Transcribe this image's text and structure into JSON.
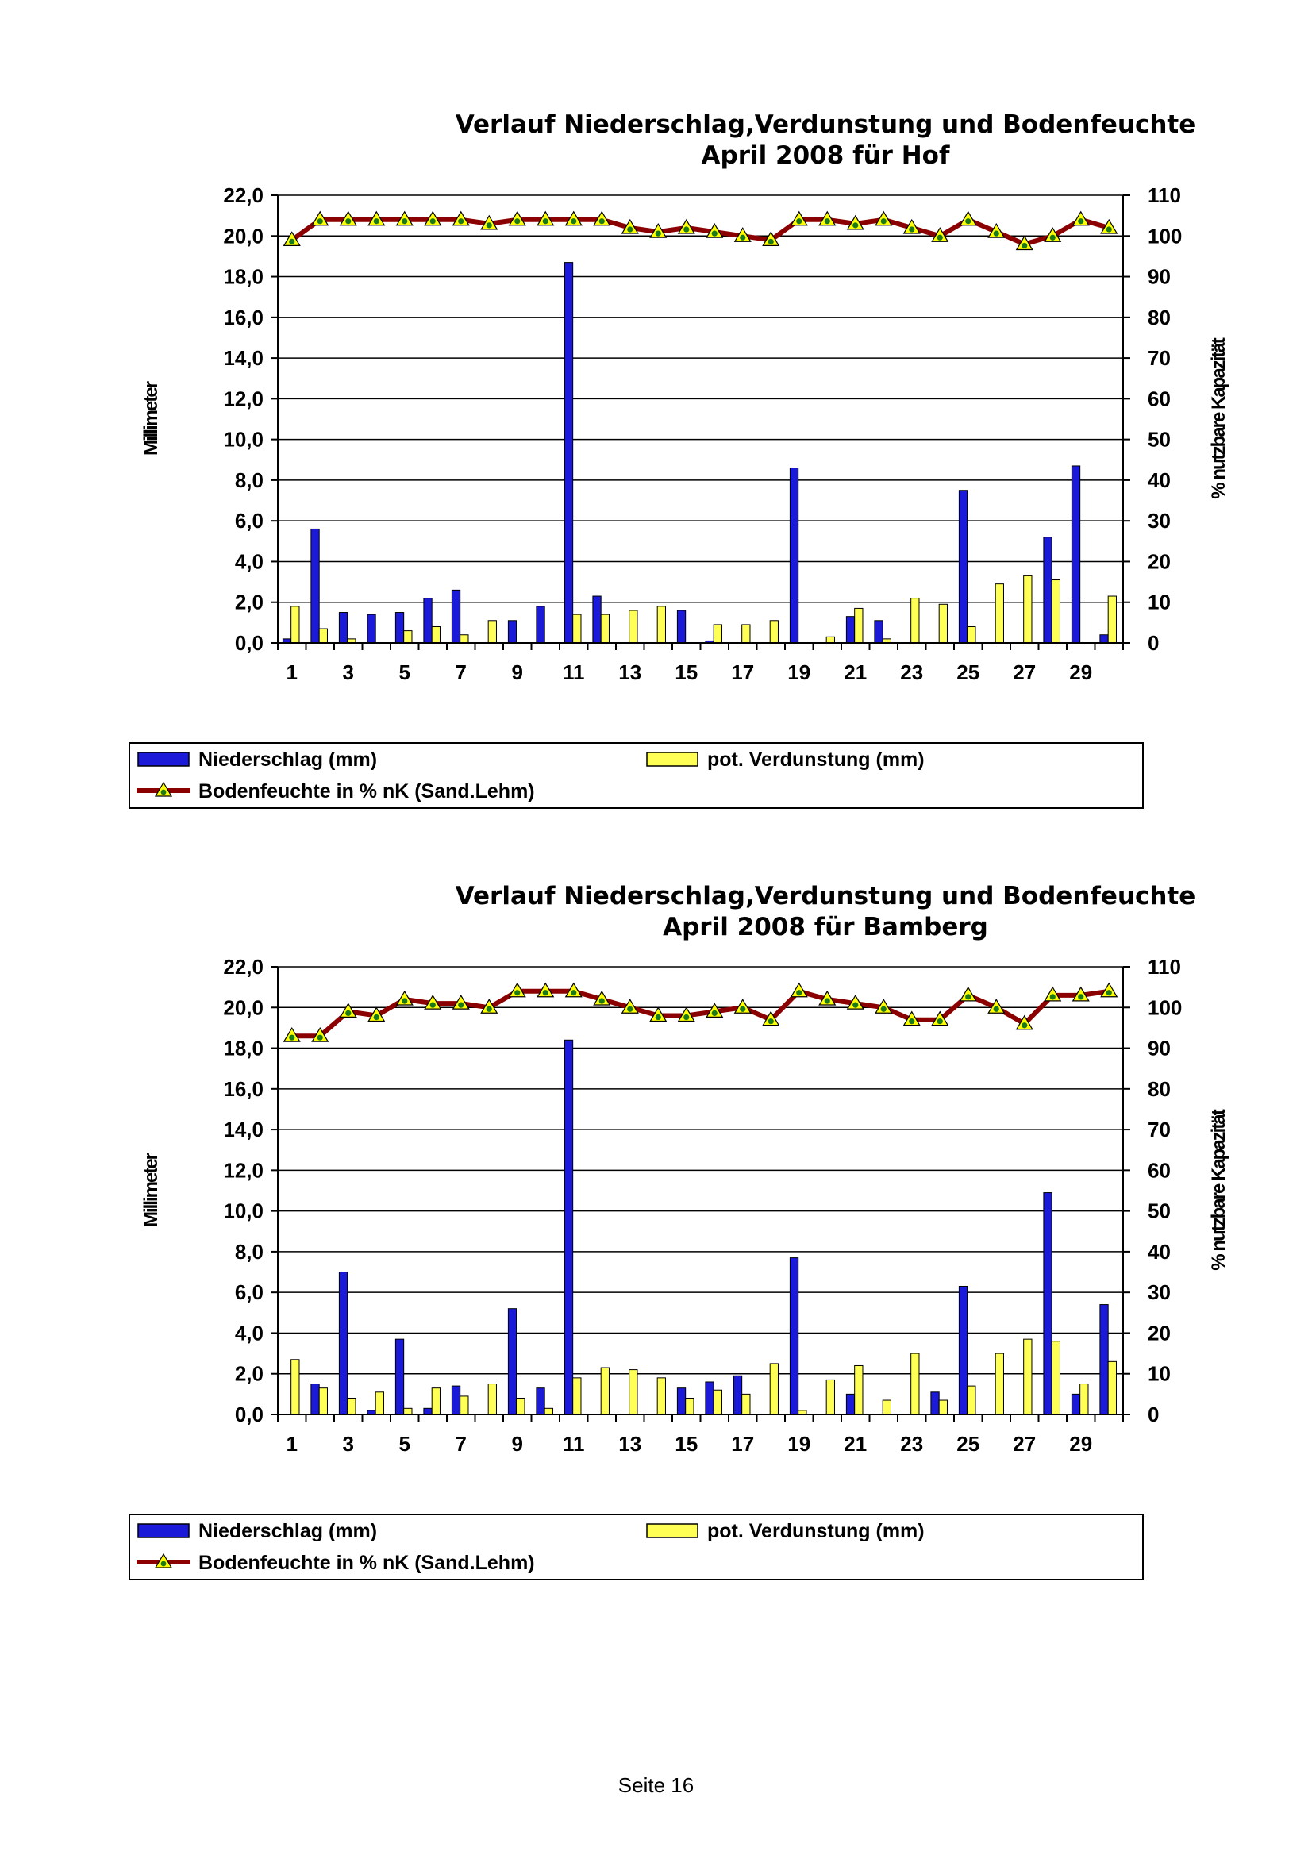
{
  "chart_data": [
    {
      "type": "bar",
      "title": "Verlauf Niederschlag,Verdunstung und Bodenfeuchte",
      "subtitle": "April 2008 für Hof",
      "ylabel": "Millimeter",
      "y2label": "% nutzbare Kapazität",
      "ylim": [
        0,
        22
      ],
      "y2lim": [
        0,
        110
      ],
      "yticks": [
        "0,0",
        "2,0",
        "4,0",
        "6,0",
        "8,0",
        "10,0",
        "12,0",
        "14,0",
        "16,0",
        "18,0",
        "20,0",
        "22,0"
      ],
      "y2ticks": [
        "0",
        "10",
        "20",
        "30",
        "40",
        "50",
        "60",
        "70",
        "80",
        "90",
        "100",
        "110"
      ],
      "xticks": [
        "1",
        "3",
        "5",
        "7",
        "9",
        "11",
        "13",
        "15",
        "17",
        "19",
        "21",
        "23",
        "25",
        "27",
        "29"
      ],
      "categories": [
        1,
        2,
        3,
        4,
        5,
        6,
        7,
        8,
        9,
        10,
        11,
        12,
        13,
        14,
        15,
        16,
        17,
        18,
        19,
        20,
        21,
        22,
        23,
        24,
        25,
        26,
        27,
        28,
        29,
        30
      ],
      "grid": true,
      "legend_position": "bottom",
      "series": [
        {
          "name": "Niederschlag (mm)",
          "kind": "bar",
          "axis": "left",
          "color": "#1a1ad8",
          "values": [
            0.2,
            5.6,
            1.5,
            1.4,
            1.5,
            2.2,
            2.6,
            0,
            1.1,
            1.8,
            18.7,
            2.3,
            0,
            0,
            1.6,
            0.1,
            0,
            0,
            8.6,
            0,
            1.3,
            1.1,
            0,
            0,
            7.5,
            0,
            0,
            5.2,
            8.7,
            0.4
          ]
        },
        {
          "name": "pot. Verdunstung (mm)",
          "kind": "bar",
          "axis": "left",
          "color": "#ffff55",
          "values": [
            1.8,
            0.7,
            0.2,
            0,
            0.6,
            0.8,
            0.4,
            1.1,
            0,
            0,
            1.4,
            1.4,
            1.6,
            1.8,
            0,
            0.9,
            0.9,
            1.1,
            0,
            0.3,
            1.7,
            0.2,
            2.2,
            1.9,
            0.8,
            2.9,
            3.3,
            3.1,
            0,
            2.3
          ]
        },
        {
          "name": "Bodenfeuchte in % nK (Sand.Lehm)",
          "kind": "line",
          "axis": "right",
          "color": "#8b0000",
          "marker_color": "#ffff00",
          "values": [
            99,
            104,
            104,
            104,
            104,
            104,
            104,
            103,
            104,
            104,
            104,
            104,
            102,
            101,
            102,
            101,
            100,
            99,
            104,
            104,
            103,
            104,
            102,
            100,
            104,
            101,
            98,
            100,
            104,
            102
          ]
        }
      ]
    },
    {
      "type": "bar",
      "title": "Verlauf Niederschlag,Verdunstung und Bodenfeuchte",
      "subtitle": "April 2008 für Bamberg",
      "ylabel": "Millimeter",
      "y2label": "% nutzbare Kapazität",
      "ylim": [
        0,
        22
      ],
      "y2lim": [
        0,
        110
      ],
      "yticks": [
        "0,0",
        "2,0",
        "4,0",
        "6,0",
        "8,0",
        "10,0",
        "12,0",
        "14,0",
        "16,0",
        "18,0",
        "20,0",
        "22,0"
      ],
      "y2ticks": [
        "0",
        "10",
        "20",
        "30",
        "40",
        "50",
        "60",
        "70",
        "80",
        "90",
        "100",
        "110"
      ],
      "xticks": [
        "1",
        "3",
        "5",
        "7",
        "9",
        "11",
        "13",
        "15",
        "17",
        "19",
        "21",
        "23",
        "25",
        "27",
        "29"
      ],
      "categories": [
        1,
        2,
        3,
        4,
        5,
        6,
        7,
        8,
        9,
        10,
        11,
        12,
        13,
        14,
        15,
        16,
        17,
        18,
        19,
        20,
        21,
        22,
        23,
        24,
        25,
        26,
        27,
        28,
        29,
        30
      ],
      "grid": true,
      "legend_position": "bottom",
      "series": [
        {
          "name": "Niederschlag (mm)",
          "kind": "bar",
          "axis": "left",
          "color": "#1a1ad8",
          "values": [
            0,
            1.5,
            7.0,
            0.2,
            3.7,
            0.3,
            1.4,
            0,
            5.2,
            1.3,
            18.4,
            0,
            0,
            0,
            1.3,
            1.6,
            1.9,
            0,
            7.7,
            0,
            1.0,
            0,
            0,
            1.1,
            6.3,
            0,
            0,
            10.9,
            1.0,
            5.4
          ]
        },
        {
          "name": "pot. Verdunstung (mm)",
          "kind": "bar",
          "axis": "left",
          "color": "#ffff55",
          "values": [
            2.7,
            1.3,
            0.8,
            1.1,
            0.3,
            1.3,
            0.9,
            1.5,
            0.8,
            0.3,
            1.8,
            2.3,
            2.2,
            1.8,
            0.8,
            1.2,
            1.0,
            2.5,
            0.2,
            1.7,
            2.4,
            0.7,
            3.0,
            0.7,
            1.4,
            3.0,
            3.7,
            3.6,
            1.5,
            2.6
          ]
        },
        {
          "name": "Bodenfeuchte in % nK (Sand.Lehm)",
          "kind": "line",
          "axis": "right",
          "color": "#8b0000",
          "marker_color": "#ffff00",
          "values": [
            93,
            93,
            99,
            98,
            102,
            101,
            101,
            100,
            104,
            104,
            104,
            102,
            100,
            98,
            98,
            99,
            100,
            97,
            104,
            102,
            101,
            100,
            97,
            97,
            103,
            100,
            96,
            103,
            103,
            104
          ]
        }
      ]
    }
  ],
  "footer": {
    "page_label": "Seite 16"
  }
}
